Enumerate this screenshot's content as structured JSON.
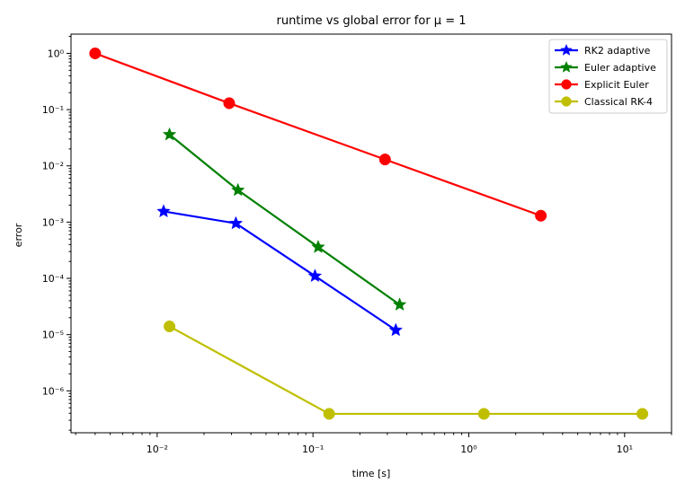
{
  "chart_data": {
    "type": "line",
    "title": "runtime vs global error for μ = 1",
    "xlabel": "time [s]",
    "ylabel": "error",
    "xscale": "log",
    "yscale": "log",
    "xlim": [
      0.0028,
      20
    ],
    "ylim": [
      1.8e-07,
      2.2
    ],
    "xticks": [
      {
        "value": 0.01,
        "label": "10⁻²"
      },
      {
        "value": 0.1,
        "label": "10⁻¹"
      },
      {
        "value": 1,
        "label": "10⁰"
      },
      {
        "value": 10,
        "label": "10¹"
      }
    ],
    "yticks": [
      {
        "value": 1,
        "label": "10⁰"
      },
      {
        "value": 0.1,
        "label": "10⁻¹"
      },
      {
        "value": 0.01,
        "label": "10⁻²"
      },
      {
        "value": 0.001,
        "label": "10⁻³"
      },
      {
        "value": 0.0001,
        "label": "10⁻⁴"
      },
      {
        "value": 1e-05,
        "label": "10⁻⁵"
      },
      {
        "value": 1e-06,
        "label": "10⁻⁶"
      }
    ],
    "grid": false,
    "legend_position": "top-right",
    "series": [
      {
        "name": "RK2 adaptive",
        "color": "#0000ff",
        "marker": "star",
        "x": [
          0.011,
          0.032,
          0.103,
          0.34
        ],
        "y": [
          0.00155,
          0.00095,
          0.00011,
          1.2e-05
        ]
      },
      {
        "name": "Euler adaptive",
        "color": "#008000",
        "marker": "star",
        "x": [
          0.012,
          0.033,
          0.108,
          0.36
        ],
        "y": [
          0.036,
          0.0037,
          0.00036,
          3.4e-05
        ]
      },
      {
        "name": "Explicit Euler",
        "color": "#ff0000",
        "marker": "circle",
        "x": [
          0.004,
          0.029,
          0.29,
          2.9
        ],
        "y": [
          1.0,
          0.13,
          0.013,
          0.0013
        ]
      },
      {
        "name": "Classical RK-4",
        "color": "#bfbf00",
        "marker": "circle",
        "x": [
          0.012,
          0.127,
          1.25,
          13
        ],
        "y": [
          1.4e-05,
          3.9e-07,
          3.9e-07,
          3.9e-07
        ]
      }
    ]
  }
}
